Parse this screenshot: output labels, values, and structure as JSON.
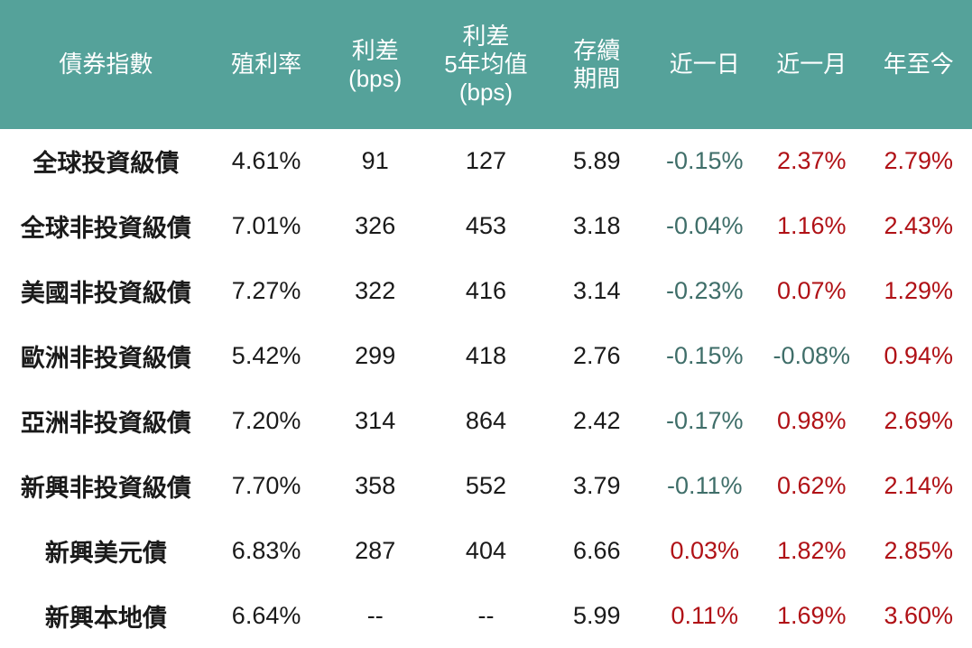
{
  "colors": {
    "header_bg": "#55A29A",
    "header_text": "#FFFFFF",
    "body_text": "#1A1A1A",
    "negative_change": "#3F6E69",
    "positive_change": "#B01116"
  },
  "table": {
    "columns": [
      {
        "id": "index_name",
        "label": "債券指數"
      },
      {
        "id": "yield",
        "label": "殖利率"
      },
      {
        "id": "spread_bps",
        "label": "利差\n(bps)"
      },
      {
        "id": "spread_5y_avg_bps",
        "label": "利差\n5年均值\n(bps)"
      },
      {
        "id": "duration",
        "label": "存續\n期間"
      },
      {
        "id": "chg_1d",
        "label": "近一日"
      },
      {
        "id": "chg_1m",
        "label": "近一月"
      },
      {
        "id": "chg_ytd",
        "label": "年至今"
      }
    ],
    "rows": [
      {
        "index_name": "全球投資級債",
        "yield": "4.61%",
        "spread_bps": "91",
        "spread_5y_avg_bps": "127",
        "duration": "5.89",
        "chg_1d": "-0.15%",
        "chg_1m": "2.37%",
        "chg_ytd": "2.79%"
      },
      {
        "index_name": "全球非投資級債",
        "yield": "7.01%",
        "spread_bps": "326",
        "spread_5y_avg_bps": "453",
        "duration": "3.18",
        "chg_1d": "-0.04%",
        "chg_1m": "1.16%",
        "chg_ytd": "2.43%"
      },
      {
        "index_name": "美國非投資級債",
        "yield": "7.27%",
        "spread_bps": "322",
        "spread_5y_avg_bps": "416",
        "duration": "3.14",
        "chg_1d": "-0.23%",
        "chg_1m": "0.07%",
        "chg_ytd": "1.29%"
      },
      {
        "index_name": "歐洲非投資級債",
        "yield": "5.42%",
        "spread_bps": "299",
        "spread_5y_avg_bps": "418",
        "duration": "2.76",
        "chg_1d": "-0.15%",
        "chg_1m": "-0.08%",
        "chg_ytd": "0.94%"
      },
      {
        "index_name": "亞洲非投資級債",
        "yield": "7.20%",
        "spread_bps": "314",
        "spread_5y_avg_bps": "864",
        "duration": "2.42",
        "chg_1d": "-0.17%",
        "chg_1m": "0.98%",
        "chg_ytd": "2.69%"
      },
      {
        "index_name": "新興非投資級債",
        "yield": "7.70%",
        "spread_bps": "358",
        "spread_5y_avg_bps": "552",
        "duration": "3.79",
        "chg_1d": "-0.11%",
        "chg_1m": "0.62%",
        "chg_ytd": "2.14%"
      },
      {
        "index_name": "新興美元債",
        "yield": "6.83%",
        "spread_bps": "287",
        "spread_5y_avg_bps": "404",
        "duration": "6.66",
        "chg_1d": "0.03%",
        "chg_1m": "1.82%",
        "chg_ytd": "2.85%"
      },
      {
        "index_name": "新興本地債",
        "yield": "6.64%",
        "spread_bps": "--",
        "spread_5y_avg_bps": "--",
        "duration": "5.99",
        "chg_1d": "0.11%",
        "chg_1m": "1.69%",
        "chg_ytd": "3.60%"
      }
    ]
  },
  "chart_data": {
    "type": "table",
    "title": "",
    "columns": [
      "債券指數",
      "殖利率",
      "利差(bps)",
      "利差5年均值(bps)",
      "存續期間",
      "近一日",
      "近一月",
      "年至今"
    ],
    "rows": [
      [
        "全球投資級債",
        "4.61%",
        "91",
        "127",
        "5.89",
        "-0.15%",
        "2.37%",
        "2.79%"
      ],
      [
        "全球非投資級債",
        "7.01%",
        "326",
        "453",
        "3.18",
        "-0.04%",
        "1.16%",
        "2.43%"
      ],
      [
        "美國非投資級債",
        "7.27%",
        "322",
        "416",
        "3.14",
        "-0.23%",
        "0.07%",
        "1.29%"
      ],
      [
        "歐洲非投資級債",
        "5.42%",
        "299",
        "418",
        "2.76",
        "-0.15%",
        "-0.08%",
        "0.94%"
      ],
      [
        "亞洲非投資級債",
        "7.20%",
        "314",
        "864",
        "2.42",
        "-0.17%",
        "0.98%",
        "2.69%"
      ],
      [
        "新興非投資級債",
        "7.70%",
        "358",
        "552",
        "3.79",
        "-0.11%",
        "0.62%",
        "2.14%"
      ],
      [
        "新興美元債",
        "6.83%",
        "287",
        "404",
        "6.66",
        "0.03%",
        "1.82%",
        "2.85%"
      ],
      [
        "新興本地債",
        "6.64%",
        "--",
        "--",
        "5.99",
        "0.11%",
        "1.69%",
        "3.60%"
      ]
    ],
    "notes": "Change columns (近一日/近一月/年至今) colored dark teal when negative, dark red when positive."
  }
}
